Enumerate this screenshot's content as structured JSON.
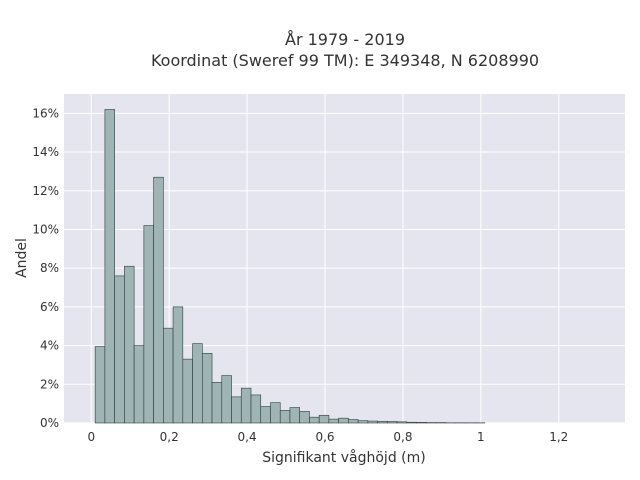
{
  "chart_data": {
    "type": "bar",
    "title_line1": "År 1979 - 2019",
    "title_line2": "Koordinat (Sweref 99 TM): E 349348, N 6208990",
    "xlabel": "Signifikant våghöjd (m)",
    "ylabel": "Andel",
    "xlim": [
      -0.07,
      1.37
    ],
    "ylim": [
      0,
      0.17
    ],
    "bin_width": 0.025,
    "bin_start": 0.01,
    "x_ticks": [
      {
        "value": 0,
        "label": "0"
      },
      {
        "value": 0.2,
        "label": "0,2"
      },
      {
        "value": 0.4,
        "label": "0,4"
      },
      {
        "value": 0.6,
        "label": "0,6"
      },
      {
        "value": 0.8,
        "label": "0,8"
      },
      {
        "value": 1.0,
        "label": "1"
      },
      {
        "value": 1.2,
        "label": "1,2"
      }
    ],
    "y_ticks": [
      {
        "value": 0,
        "label": "0%"
      },
      {
        "value": 0.02,
        "label": "2%"
      },
      {
        "value": 0.04,
        "label": "4%"
      },
      {
        "value": 0.06,
        "label": "6%"
      },
      {
        "value": 0.08,
        "label": "8%"
      },
      {
        "value": 0.1,
        "label": "10%"
      },
      {
        "value": 0.12,
        "label": "12%"
      },
      {
        "value": 0.14,
        "label": "14%"
      },
      {
        "value": 0.16,
        "label": "16%"
      }
    ],
    "values": [
      0.0395,
      0.162,
      0.076,
      0.081,
      0.04,
      0.102,
      0.127,
      0.049,
      0.06,
      0.033,
      0.041,
      0.036,
      0.021,
      0.0245,
      0.0135,
      0.018,
      0.0145,
      0.0085,
      0.0105,
      0.0065,
      0.008,
      0.006,
      0.003,
      0.004,
      0.002,
      0.0025,
      0.0018,
      0.0012,
      0.001,
      0.0009,
      0.0008,
      0.0006,
      0.0004,
      0.0003,
      0.0002,
      0.0002,
      0.0001,
      0.0001,
      0.0001,
      0.0001
    ],
    "grid": true,
    "colors": {
      "plot_background": "#e5e5ef",
      "bar_fill": "#9fb5b5",
      "bar_edge": "#2e3b3b"
    }
  }
}
